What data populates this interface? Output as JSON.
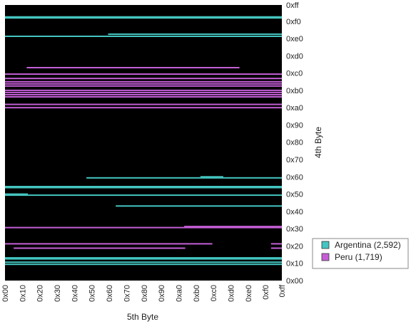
{
  "chart_data": {
    "type": "scatter",
    "title": "",
    "xlabel": "5th Byte",
    "ylabel": "4th Byte",
    "xlim": [
      0,
      255
    ],
    "ylim": [
      0,
      255
    ],
    "x_ticks": [
      "0x00",
      "0x10",
      "0x20",
      "0x30",
      "0x40",
      "0x50",
      "0x60",
      "0x70",
      "0x80",
      "0x90",
      "0xa0",
      "0xb0",
      "0xc0",
      "0xd0",
      "0xe0",
      "0xf0",
      "0xff"
    ],
    "y_ticks": [
      "0x00",
      "0x10",
      "0x20",
      "0x30",
      "0x40",
      "0x50",
      "0x60",
      "0x70",
      "0x80",
      "0x90",
      "0xa0",
      "0xb0",
      "0xc0",
      "0xd0",
      "0xe0",
      "0xf0",
      "0xff"
    ],
    "background": "#000000",
    "legend_position": "right",
    "series": [
      {
        "name": "Argentina (2,592)",
        "color": "#44c5c0",
        "rows": [
          {
            "y": 15,
            "x_ranges": [
              [
                0,
                255
              ]
            ]
          },
          {
            "y": 17,
            "x_ranges": [
              [
                0,
                255
              ]
            ]
          },
          {
            "y": 20,
            "x_ranges": [
              [
                0,
                255
              ]
            ]
          },
          {
            "y": 21,
            "x_ranges": [
              [
                0,
                255
              ]
            ]
          },
          {
            "y": 69,
            "x_ranges": [
              [
                102,
                255
              ]
            ]
          },
          {
            "y": 79,
            "x_ranges": [
              [
                0,
                255
              ]
            ]
          },
          {
            "y": 80,
            "x_ranges": [
              [
                0,
                20
              ]
            ]
          },
          {
            "y": 86,
            "x_ranges": [
              [
                0,
                255
              ]
            ]
          },
          {
            "y": 87,
            "x_ranges": [
              [
                0,
                255
              ]
            ]
          },
          {
            "y": 95,
            "x_ranges": [
              [
                75,
                255
              ]
            ]
          },
          {
            "y": 96,
            "x_ranges": [
              [
                180,
                200
              ]
            ]
          },
          {
            "y": 226,
            "x_ranges": [
              [
                0,
                255
              ]
            ]
          },
          {
            "y": 228,
            "x_ranges": [
              [
                95,
                255
              ]
            ]
          },
          {
            "y": 243,
            "x_ranges": [
              [
                0,
                255
              ]
            ]
          },
          {
            "y": 244,
            "x_ranges": [
              [
                0,
                255
              ]
            ]
          }
        ]
      },
      {
        "name": "Peru (1,719)",
        "color": "#c45ed6",
        "rows": [
          {
            "y": 30,
            "x_ranges": [
              [
                8,
                165
              ],
              [
                245,
                255
              ]
            ]
          },
          {
            "y": 34,
            "x_ranges": [
              [
                0,
                190
              ],
              [
                245,
                255
              ]
            ]
          },
          {
            "y": 49,
            "x_ranges": [
              [
                0,
                255
              ]
            ]
          },
          {
            "y": 50,
            "x_ranges": [
              [
                165,
                255
              ]
            ]
          },
          {
            "y": 160,
            "x_ranges": [
              [
                0,
                255
              ]
            ]
          },
          {
            "y": 163,
            "x_ranges": [
              [
                0,
                255
              ]
            ]
          },
          {
            "y": 170,
            "x_ranges": [
              [
                0,
                255
              ]
            ]
          },
          {
            "y": 172,
            "x_ranges": [
              [
                0,
                255
              ]
            ]
          },
          {
            "y": 174,
            "x_ranges": [
              [
                0,
                255
              ]
            ]
          },
          {
            "y": 176,
            "x_ranges": [
              [
                0,
                255
              ]
            ]
          },
          {
            "y": 180,
            "x_ranges": [
              [
                0,
                255
              ]
            ]
          },
          {
            "y": 182,
            "x_ranges": [
              [
                0,
                255
              ]
            ]
          },
          {
            "y": 184,
            "x_ranges": [
              [
                0,
                255
              ]
            ]
          },
          {
            "y": 187,
            "x_ranges": [
              [
                0,
                255
              ]
            ]
          },
          {
            "y": 191,
            "x_ranges": [
              [
                0,
                255
              ]
            ]
          },
          {
            "y": 197,
            "x_ranges": [
              [
                20,
                215
              ]
            ]
          }
        ]
      }
    ]
  }
}
